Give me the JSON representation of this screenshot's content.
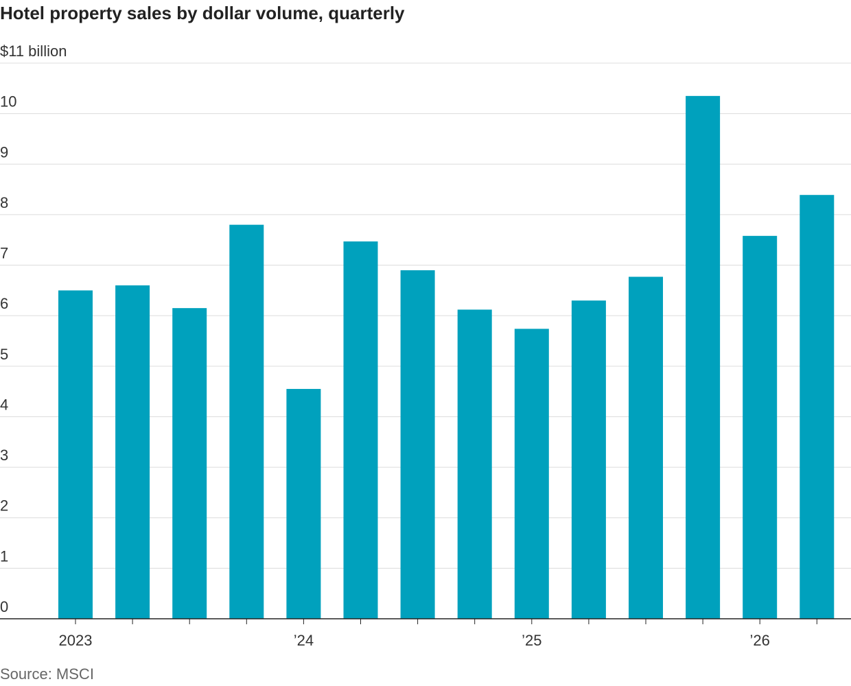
{
  "chart_data": {
    "type": "bar",
    "title": "Hotel property sales by dollar volume, quarterly",
    "y_unit_label": "$11 billion",
    "ylim": [
      0,
      11
    ],
    "y_ticks": [
      {
        "value": 11,
        "label": "$11 billion"
      },
      {
        "value": 10,
        "label": "10"
      },
      {
        "value": 9,
        "label": "9"
      },
      {
        "value": 8,
        "label": "8"
      },
      {
        "value": 7,
        "label": "7"
      },
      {
        "value": 6,
        "label": "6"
      },
      {
        "value": 5,
        "label": "5"
      },
      {
        "value": 4,
        "label": "4"
      },
      {
        "value": 3,
        "label": "3"
      },
      {
        "value": 2,
        "label": "2"
      },
      {
        "value": 1,
        "label": "1"
      },
      {
        "value": 0,
        "label": "0"
      }
    ],
    "values": [
      6.5,
      6.6,
      6.15,
      7.8,
      4.55,
      7.47,
      6.9,
      6.12,
      5.74,
      6.3,
      6.77,
      10.35,
      7.58,
      8.39
    ],
    "x_tick_labels": [
      {
        "index": 0,
        "label": "2023"
      },
      {
        "index": 4,
        "label": "’24"
      },
      {
        "index": 8,
        "label": "’25"
      },
      {
        "index": 12,
        "label": "’26"
      }
    ],
    "grid": true,
    "bar_color": "#00a1bd"
  },
  "source": "Source: MSCI"
}
